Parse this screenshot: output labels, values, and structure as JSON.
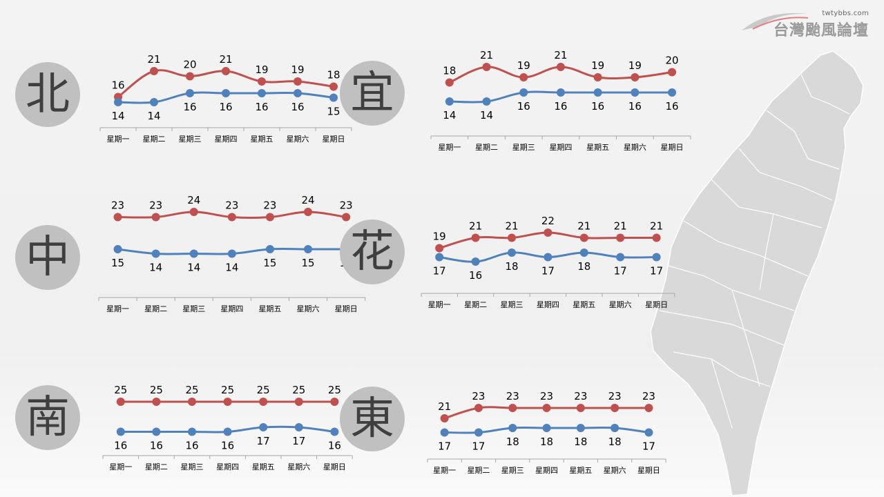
{
  "logo": {
    "url": "twtybbs.com",
    "name": "台灣颱風論壇"
  },
  "colors": {
    "high": "#c0504d",
    "low": "#4f81bd",
    "axis": "#a6a6a6",
    "badge": "#c0c0c0",
    "map_fill": "#d9d9d9",
    "map_stroke": "#ffffff"
  },
  "chart_data": [
    {
      "type": "line",
      "region": "北",
      "categories": [
        "星期一",
        "星期二",
        "星期三",
        "星期四",
        "星期五",
        "星期六",
        "星期日"
      ],
      "series": [
        {
          "values": [
            16,
            21,
            20,
            21,
            19,
            19,
            18
          ],
          "color": "#c0504d"
        },
        {
          "values": [
            14,
            14,
            16,
            16,
            16,
            16,
            15
          ],
          "color": "#4f81bd"
        }
      ]
    },
    {
      "type": "line",
      "region": "宜",
      "categories": [
        "星期一",
        "星期二",
        "星期三",
        "星期四",
        "星期五",
        "星期六",
        "星期日"
      ],
      "series": [
        {
          "values": [
            18,
            21,
            19,
            21,
            19,
            19,
            20
          ],
          "color": "#c0504d"
        },
        {
          "values": [
            14,
            14,
            16,
            16,
            16,
            16,
            16
          ],
          "color": "#4f81bd"
        }
      ]
    },
    {
      "type": "line",
      "region": "中",
      "categories": [
        "星期一",
        "星期二",
        "星期三",
        "星期四",
        "星期五",
        "星期六",
        "星期日"
      ],
      "series": [
        {
          "values": [
            23,
            23,
            24,
            23,
            23,
            24,
            23
          ],
          "color": "#c0504d"
        },
        {
          "values": [
            15,
            14,
            14,
            14,
            15,
            15,
            15
          ],
          "color": "#4f81bd"
        }
      ]
    },
    {
      "type": "line",
      "region": "花",
      "categories": [
        "星期一",
        "星期二",
        "星期三",
        "星期四",
        "星期五",
        "星期六",
        "星期日"
      ],
      "series": [
        {
          "values": [
            19,
            21,
            21,
            22,
            21,
            21,
            21
          ],
          "color": "#c0504d"
        },
        {
          "values": [
            17,
            16,
            18,
            17,
            18,
            17,
            17
          ],
          "color": "#4f81bd"
        }
      ]
    },
    {
      "type": "line",
      "region": "南",
      "categories": [
        "星期一",
        "星期二",
        "星期三",
        "星期四",
        "星期五",
        "星期六",
        "星期日"
      ],
      "series": [
        {
          "values": [
            25,
            25,
            25,
            25,
            25,
            25,
            25
          ],
          "color": "#c0504d"
        },
        {
          "values": [
            16,
            16,
            16,
            16,
            17,
            17,
            16
          ],
          "color": "#4f81bd"
        }
      ]
    },
    {
      "type": "line",
      "region": "東",
      "categories": [
        "星期一",
        "星期二",
        "星期三",
        "星期四",
        "星期五",
        "星期六",
        "星期日"
      ],
      "series": [
        {
          "values": [
            21,
            23,
            23,
            23,
            23,
            23,
            23
          ],
          "color": "#c0504d"
        },
        {
          "values": [
            17,
            17,
            18,
            18,
            18,
            18,
            17
          ],
          "color": "#4f81bd"
        }
      ]
    }
  ]
}
